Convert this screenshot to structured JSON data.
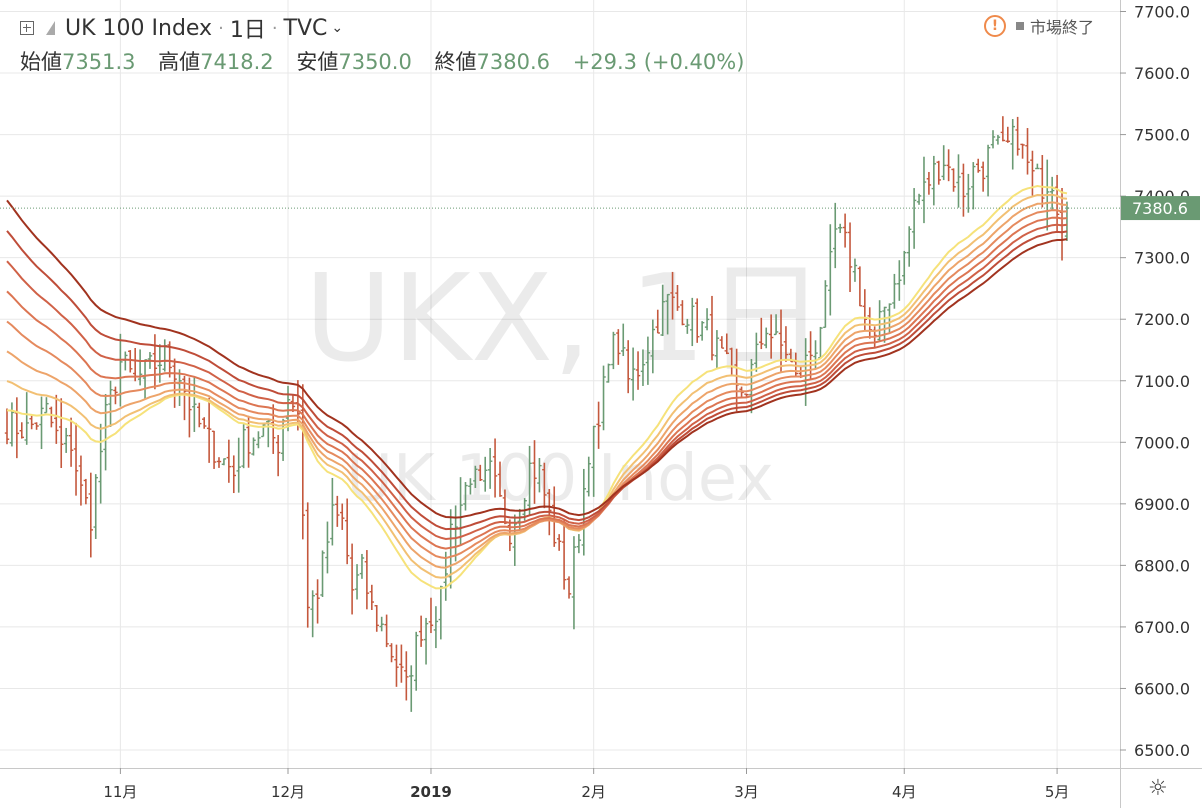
{
  "header": {
    "symbol": "UK 100 Index",
    "interval": "1日",
    "exchange": "TVC",
    "ohlc": {
      "open_label": "始値",
      "open": "7351.3",
      "high_label": "高値",
      "high": "7418.2",
      "low_label": "安値",
      "low": "7350.0",
      "close_label": "終値",
      "close": "7380.6",
      "change": "+29.3 (+0.40%)"
    },
    "market_status": "市場終了",
    "status_icon": "warning-icon"
  },
  "watermark": {
    "symbol": "UKX, 1日",
    "name": "UK 100 Index"
  },
  "chart_data": {
    "type": "ohlc-bar",
    "title": "UK 100 Index",
    "ylim": [
      6480,
      7720
    ],
    "y_ticks": [
      "7700.0",
      "7600.0",
      "7500.0",
      "7400.0",
      "7300.0",
      "7200.0",
      "7100.0",
      "7000.0",
      "6900.0",
      "6800.0",
      "6700.0",
      "6600.0",
      "6500.0"
    ],
    "x_ticks": [
      {
        "label": "11月",
        "index": 23
      },
      {
        "label": "12月",
        "index": 57
      },
      {
        "label": "2019",
        "index": 86
      },
      {
        "label": "2月",
        "index": 119
      },
      {
        "label": "3月",
        "index": 150
      },
      {
        "label": "4月",
        "index": 182
      },
      {
        "label": "5月",
        "index": 213
      }
    ],
    "last_price": "7380.6",
    "colors": {
      "up": "#6a9a73",
      "down": "#c4583d",
      "price_label_bg": "#6a9a73",
      "grid": "#e8e8e8"
    },
    "waypoints": [
      [
        0,
        7030
      ],
      [
        4,
        7020
      ],
      [
        8,
        7050
      ],
      [
        11,
        6990
      ],
      [
        13,
        7000
      ],
      [
        15,
        6920
      ],
      [
        17,
        6880
      ],
      [
        20,
        7040
      ],
      [
        23,
        7130
      ],
      [
        26,
        7100
      ],
      [
        29,
        7120
      ],
      [
        32,
        7140
      ],
      [
        35,
        7110
      ],
      [
        38,
        7040
      ],
      [
        42,
        6990
      ],
      [
        46,
        6950
      ],
      [
        48,
        7000
      ],
      [
        52,
        7020
      ],
      [
        55,
        7000
      ],
      [
        57,
        7080
      ],
      [
        59,
        7050
      ],
      [
        61,
        6730
      ],
      [
        63,
        6760
      ],
      [
        66,
        6880
      ],
      [
        68,
        6870
      ],
      [
        70,
        6760
      ],
      [
        72,
        6790
      ],
      [
        74,
        6730
      ],
      [
        76,
        6700
      ],
      [
        78,
        6660
      ],
      [
        80,
        6620
      ],
      [
        81,
        6600
      ],
      [
        82,
        6640
      ],
      [
        84,
        6700
      ],
      [
        86,
        6720
      ],
      [
        88,
        6740
      ],
      [
        90,
        6860
      ],
      [
        92,
        6900
      ],
      [
        94,
        6950
      ],
      [
        96,
        6920
      ],
      [
        98,
        6950
      ],
      [
        100,
        6900
      ],
      [
        102,
        6860
      ],
      [
        104,
        6900
      ],
      [
        106,
        6960
      ],
      [
        108,
        6950
      ],
      [
        110,
        6880
      ],
      [
        112,
        6820
      ],
      [
        114,
        6760
      ],
      [
        116,
        6860
      ],
      [
        118,
        6990
      ],
      [
        120,
        7020
      ],
      [
        122,
        7150
      ],
      [
        124,
        7160
      ],
      [
        126,
        7100
      ],
      [
        128,
        7120
      ],
      [
        130,
        7160
      ],
      [
        132,
        7200
      ],
      [
        134,
        7230
      ],
      [
        136,
        7220
      ],
      [
        138,
        7210
      ],
      [
        140,
        7190
      ],
      [
        142,
        7180
      ],
      [
        144,
        7150
      ],
      [
        146,
        7120
      ],
      [
        148,
        7080
      ],
      [
        150,
        7090
      ],
      [
        152,
        7140
      ],
      [
        154,
        7190
      ],
      [
        156,
        7160
      ],
      [
        158,
        7150
      ],
      [
        160,
        7100
      ],
      [
        162,
        7130
      ],
      [
        164,
        7160
      ],
      [
        166,
        7230
      ],
      [
        168,
        7340
      ],
      [
        170,
        7320
      ],
      [
        172,
        7280
      ],
      [
        174,
        7200
      ],
      [
        176,
        7160
      ],
      [
        178,
        7220
      ],
      [
        180,
        7260
      ],
      [
        182,
        7300
      ],
      [
        184,
        7390
      ],
      [
        186,
        7410
      ],
      [
        188,
        7440
      ],
      [
        190,
        7460
      ],
      [
        192,
        7430
      ],
      [
        194,
        7410
      ],
      [
        196,
        7440
      ],
      [
        198,
        7450
      ],
      [
        200,
        7480
      ],
      [
        202,
        7470
      ],
      [
        204,
        7490
      ],
      [
        205,
        7500
      ],
      [
        206,
        7470
      ],
      [
        208,
        7430
      ],
      [
        210,
        7420
      ],
      [
        212,
        7430
      ],
      [
        214,
        7350
      ],
      [
        215,
        7380
      ]
    ],
    "ema_periods": [
      30,
      35,
      40,
      45,
      50,
      55,
      60,
      66
    ],
    "ema_colors": [
      "#f6e27a",
      "#f2c073",
      "#eda46a",
      "#e58a5e",
      "#dc7552",
      "#d06147",
      "#bf4d39",
      "#a1331f"
    ]
  }
}
